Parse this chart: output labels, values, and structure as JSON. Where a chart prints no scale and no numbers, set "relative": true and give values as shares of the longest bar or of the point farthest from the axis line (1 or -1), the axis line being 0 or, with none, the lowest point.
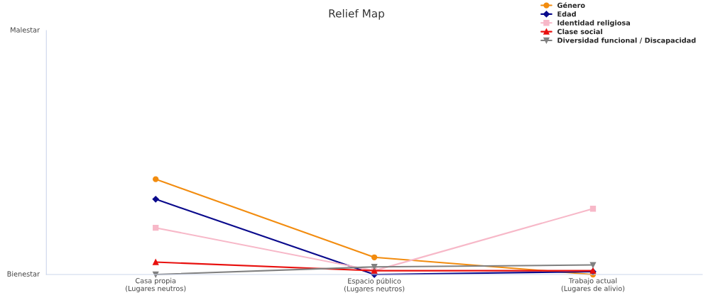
{
  "chart_data": {
    "type": "line",
    "title": "Relief Map",
    "relative": true,
    "categories": [
      "Casa propia\n(Lugares neutros)",
      "Espacio público\n(Lugares neutros)",
      "Trabajo actual\n(Lugares de alivio)"
    ],
    "series": [
      {
        "name": "Género",
        "color": "#f28c0f",
        "marker": "circle",
        "values": [
          1,
          0.18,
          0
        ]
      },
      {
        "name": "Edad",
        "color": "#0a0a8c",
        "marker": "diamond",
        "values": [
          0.79,
          0,
          0.03
        ]
      },
      {
        "name": "Identidad religiosa",
        "color": "#f7b8c8",
        "marker": "square",
        "values": [
          0.49,
          0.04,
          0.69
        ]
      },
      {
        "name": "Clase social",
        "color": "#e8100e",
        "marker": "triangle",
        "values": [
          0.13,
          0.04,
          0.04
        ]
      },
      {
        "name": "Diversidad funcional / Discapacidad",
        "color": "#808080",
        "marker": "triangle_down",
        "values": [
          0,
          0.08,
          0.1
        ]
      }
    ],
    "annotations": [
      "Malestar",
      "Bienestar"
    ],
    "grid": false,
    "legend": "top right",
    "line_style": "solid"
  }
}
